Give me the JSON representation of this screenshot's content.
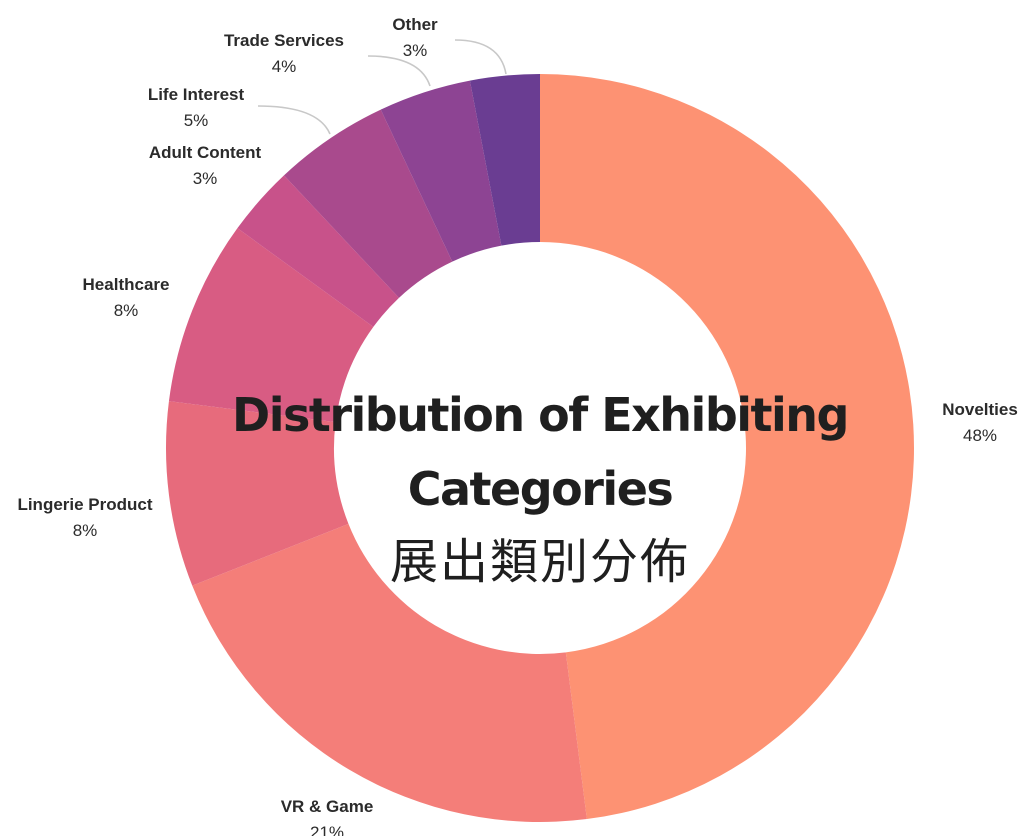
{
  "chart_data": {
    "type": "pie",
    "variant": "donut",
    "title_line1": "Distribution of Exhibiting",
    "title_line2": "Categories",
    "title_line3": "展出類別分佈",
    "slices": [
      {
        "name": "Novelties",
        "value": 48,
        "label": "48%",
        "color": "#fd9273"
      },
      {
        "name": "VR & Game",
        "value": 21,
        "label": "21%",
        "color": "#f47e79"
      },
      {
        "name": "Lingerie Product",
        "value": 8,
        "label": "8%",
        "color": "#e76b7c"
      },
      {
        "name": "Healthcare",
        "value": 8,
        "label": "8%",
        "color": "#d85c83"
      },
      {
        "name": "Adult Content",
        "value": 3,
        "label": "3%",
        "color": "#c8528a"
      },
      {
        "name": "Life Interest",
        "value": 5,
        "label": "5%",
        "color": "#a94a8d"
      },
      {
        "name": "Trade Services",
        "value": 4,
        "label": "4%",
        "color": "#8d4493"
      },
      {
        "name": "Other",
        "value": 3,
        "label": "3%",
        "color": "#6a3d92"
      }
    ]
  }
}
